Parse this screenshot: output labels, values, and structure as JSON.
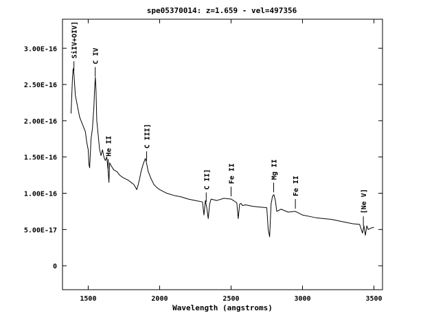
{
  "chart_data": {
    "type": "line",
    "title": "spe05370014: z=1.659 - vel=497356",
    "xlabel": "Wavelength (angstroms)",
    "ylabel": "",
    "xlim": [
      1320,
      3560
    ],
    "ylim": [
      -3.3e-17,
      3.4e-16
    ],
    "x_ticks": [
      1500,
      2000,
      2500,
      3000,
      3500
    ],
    "x_tick_labels": [
      "1500",
      "2000",
      "2500",
      "3000",
      "3500"
    ],
    "y_ticks": [
      0,
      5e-17,
      1e-16,
      1.5e-16,
      2e-16,
      2.5e-16,
      3e-16
    ],
    "y_tick_labels": [
      "0",
      "5.00E-17",
      "1.00E-16",
      "1.50E-16",
      "2.00E-16",
      "2.50E-16",
      "3.00E-16"
    ],
    "grid": false,
    "series": [
      {
        "x": [
          1380,
          1390,
          1395,
          1400,
          1405,
          1410,
          1420,
          1430,
          1440,
          1450,
          1460,
          1470,
          1480,
          1490,
          1500,
          1505,
          1510,
          1515,
          1520,
          1530,
          1540,
          1545,
          1550,
          1555,
          1560,
          1570,
          1580,
          1590,
          1600,
          1610,
          1620,
          1630,
          1640,
          1645,
          1650,
          1660,
          1680,
          1700,
          1720,
          1740,
          1760,
          1780,
          1800,
          1820,
          1840,
          1850,
          1860,
          1870,
          1880,
          1890,
          1900,
          1910,
          1920,
          1940,
          1960,
          1980,
          2000,
          2050,
          2100,
          2150,
          2200,
          2250,
          2300,
          2310,
          2320,
          2330,
          2340,
          2350,
          2360,
          2400,
          2450,
          2500,
          2540,
          2550,
          2560,
          2570,
          2580,
          2600,
          2650,
          2700,
          2750,
          2760,
          2770,
          2780,
          2790,
          2800,
          2810,
          2820,
          2850,
          2900,
          2950,
          3000,
          3050,
          3100,
          3150,
          3200,
          3250,
          3300,
          3350,
          3400,
          3420,
          3430,
          3440,
          3450,
          3460,
          3480,
          3500
        ],
        "y": [
          2.1e-16,
          2.6e-16,
          2.72e-16,
          2.65e-16,
          2.5e-16,
          2.35e-16,
          2.25e-16,
          2.15e-16,
          2.05e-16,
          2e-16,
          1.95e-16,
          1.9e-16,
          1.85e-16,
          1.7e-16,
          1.6e-16,
          1.4e-16,
          1.35e-16,
          1.55e-16,
          1.75e-16,
          1.9e-16,
          2.2e-16,
          2.45e-16,
          2.6e-16,
          2.4e-16,
          2e-16,
          1.8e-16,
          1.6e-16,
          1.52e-16,
          1.6e-16,
          1.5e-16,
          1.45e-16,
          1.5e-16,
          1.3e-16,
          1.15e-16,
          1.42e-16,
          1.38e-16,
          1.32e-16,
          1.3e-16,
          1.25e-16,
          1.22e-16,
          1.2e-16,
          1.18e-16,
          1.15e-16,
          1.12e-16,
          1.05e-16,
          1.12e-16,
          1.2e-16,
          1.3e-16,
          1.37e-16,
          1.43e-16,
          1.48e-16,
          1.4e-16,
          1.3e-16,
          1.2e-16,
          1.12e-16,
          1.08e-16,
          1.05e-16,
          1e-16,
          9.7e-17,
          9.5e-17,
          9.2e-17,
          9e-17,
          8.8e-17,
          7e-17,
          9e-17,
          8e-17,
          6.5e-17,
          8.5e-17,
          9.2e-17,
          9e-17,
          9.3e-17,
          9.2e-17,
          8.7e-17,
          6.5e-17,
          8.5e-17,
          8.6e-17,
          8.3e-17,
          8.4e-17,
          8.2e-17,
          8.1e-17,
          8e-17,
          5e-17,
          4e-17,
          8.5e-17,
          9.6e-17,
          9.8e-17,
          9e-17,
          7.5e-17,
          7.8e-17,
          7.4e-17,
          7.5e-17,
          7e-17,
          6.8e-17,
          6.6e-17,
          6.5e-17,
          6.4e-17,
          6.2e-17,
          6e-17,
          5.8e-17,
          5.7e-17,
          4.5e-17,
          5.5e-17,
          4.2e-17,
          5.5e-17,
          5e-17,
          5.2e-17,
          5.3e-17
        ]
      }
    ],
    "annotations": [
      {
        "text": "SiIV+OIV]",
        "x": 1400
      },
      {
        "text": "C IV",
        "x": 1549
      },
      {
        "text": "He II",
        "x": 1640
      },
      {
        "text": "C III]",
        "x": 1909
      },
      {
        "text": "C II]",
        "x": 2326
      },
      {
        "text": "Fe II",
        "x": 2500
      },
      {
        "text": "Mg II",
        "x": 2798
      },
      {
        "text": "Fe II",
        "x": 2950
      },
      {
        "text": "[Ne V]",
        "x": 3426
      }
    ]
  }
}
